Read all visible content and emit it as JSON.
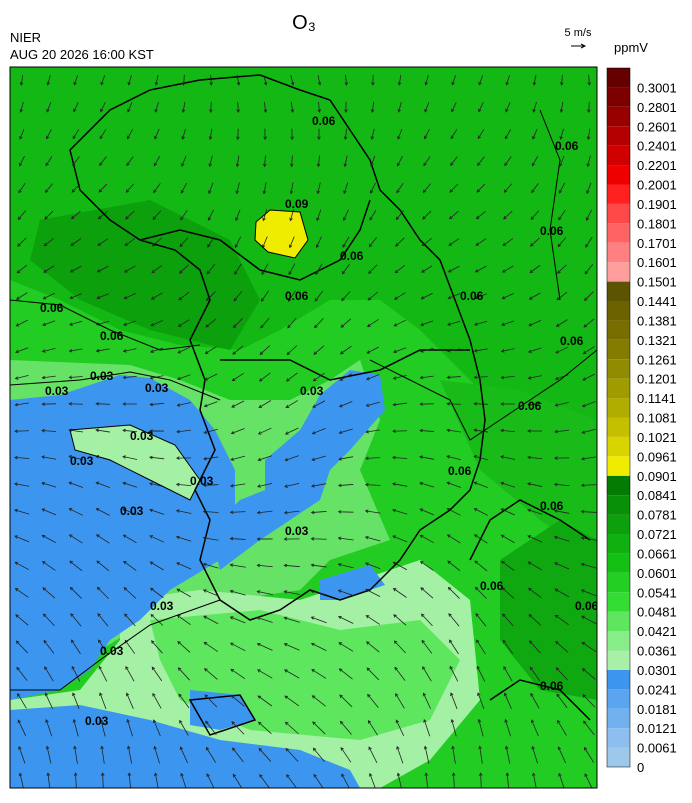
{
  "header": {
    "title": "O₃",
    "agency": "NIER",
    "timestamp": "AUG 20 2026 16:00 KST",
    "wind_reference": "5 m/s"
  },
  "colorbar": {
    "unit": "ppmV",
    "labels": [
      "0",
      "0.0061",
      "0.0121",
      "0.0181",
      "0.0241",
      "0.0301",
      "0.0361",
      "0.0421",
      "0.0481",
      "0.0541",
      "0.0601",
      "0.0661",
      "0.0721",
      "0.0781",
      "0.0841",
      "0.0901",
      "0.0961",
      "0.1021",
      "0.1081",
      "0.1141",
      "0.1201",
      "0.1261",
      "0.1321",
      "0.1381",
      "0.1441",
      "0.1501",
      "0.1601",
      "0.1701",
      "0.1801",
      "0.1901",
      "0.2001",
      "0.2201",
      "0.2401",
      "0.2601",
      "0.2801",
      "0.3001"
    ],
    "colors": [
      "#9cc8ec",
      "#8cbff0",
      "#72b1f0",
      "#5aa4f0",
      "#3c96f0",
      "#a8f0a8",
      "#88ec88",
      "#5ee65e",
      "#33dd33",
      "#22d022",
      "#14c014",
      "#10b010",
      "#0ca00c",
      "#089008",
      "#047c04",
      "#f0ec00",
      "#d8d400",
      "#c4c000",
      "#b0ac00",
      "#a09c00",
      "#908c00",
      "#847c00",
      "#786e00",
      "#6c6200",
      "#5c5400",
      "#ff9c9c",
      "#ff8080",
      "#ff6464",
      "#ff4848",
      "#ff2020",
      "#ee0000",
      "#d00000",
      "#b40000",
      "#980000",
      "#7c0000",
      "#640000"
    ]
  },
  "contour_labels": [
    "0.06",
    "0.06",
    "0.06",
    "0.09",
    "0.06",
    "0.06",
    "0.06",
    "0.06",
    "0.06",
    "0.06",
    "0.06",
    "0.06",
    "0.03",
    "0.03",
    "0.03",
    "0.03",
    "0.03",
    "0.03",
    "0.03",
    "0.03",
    "0.03",
    "0.03",
    "0.03",
    "0.03",
    "0.06",
    "0.06",
    "0.06",
    "0.06"
  ]
}
